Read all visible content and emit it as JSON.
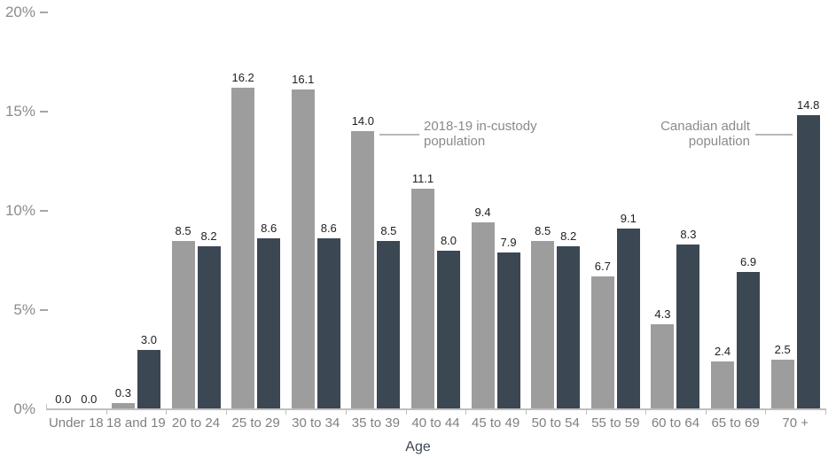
{
  "chart_data": {
    "type": "bar",
    "title": "",
    "xlabel": "Age",
    "ylabel": "",
    "ylim": [
      0,
      20
    ],
    "yticks": [
      0,
      5,
      10,
      15,
      20
    ],
    "ytick_labels": [
      "0%",
      "5%",
      "10%",
      "15%",
      "20%"
    ],
    "grid": false,
    "legend_position": "inline-annotations",
    "value_label_decimals": 1,
    "categories": [
      "Under 18",
      "18 and 19",
      "20 to 24",
      "25 to 29",
      "30 to 34",
      "35 to 39",
      "40 to 44",
      "45 to 49",
      "50 to 54",
      "55 to 59",
      "60 to 64",
      "65 to 69",
      "70 +"
    ],
    "series": [
      {
        "name": "2018-19 in-custody population",
        "color": "#9d9d9d",
        "values": [
          0.0,
          0.3,
          8.5,
          16.2,
          16.1,
          14.0,
          11.1,
          9.4,
          8.5,
          6.7,
          4.3,
          2.4,
          2.5
        ]
      },
      {
        "name": "Canadian adult population",
        "color": "#3c4754",
        "values": [
          0.0,
          3.0,
          8.2,
          8.6,
          8.6,
          8.5,
          8.0,
          7.9,
          8.2,
          9.1,
          8.3,
          6.9,
          14.8
        ]
      }
    ],
    "annotations": [
      {
        "text": "2018-19 in-custody\npopulation",
        "series_index": 0,
        "target_category": "35 to 39"
      },
      {
        "text": "Canadian adult\npopulation",
        "series_index": 1,
        "target_category": "70 +"
      }
    ]
  },
  "style": {
    "axis_color": "#bfbfbf",
    "tick_label_color": "#8c8c8c",
    "category_label_color": "#808080",
    "data_label_color": "#212121",
    "annotation_color": "#8a8a8a",
    "axis_title_color": "#3d4754"
  }
}
